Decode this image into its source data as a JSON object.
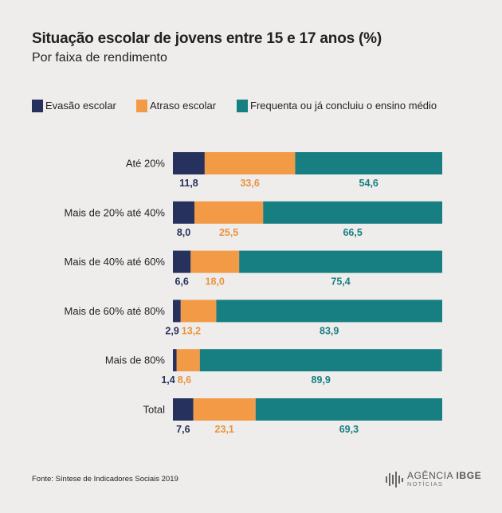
{
  "chart_data": {
    "type": "bar",
    "stacked": true,
    "orientation": "horizontal",
    "title": "Situação escolar de jovens entre 15 e 17 anos  (%)",
    "subtitle": "Por faixa de rendimento",
    "categories": [
      "Até 20%",
      "Mais de 20% até 40%",
      "Mais de 40% até 60%",
      "Mais de 60% até 80%",
      "Mais de 80%",
      "Total"
    ],
    "series": [
      {
        "name": "Evasão escolar",
        "color": "#26315e",
        "label_color": "#26315e",
        "values": [
          11.8,
          8.0,
          6.6,
          2.9,
          1.4,
          7.6
        ],
        "labels": [
          "11,8",
          "8,0",
          "6,6",
          "2,9",
          "1,4",
          "7,6"
        ]
      },
      {
        "name": "Atraso escolar",
        "color": "#f39a47",
        "label_color": "#e8933f",
        "values": [
          33.6,
          25.5,
          18.0,
          13.2,
          8.6,
          23.1
        ],
        "labels": [
          "33,6",
          "25,5",
          "18,0",
          "13,2",
          "8,6",
          "23,1"
        ]
      },
      {
        "name": "Frequenta ou já concluiu o ensino médio",
        "color": "#177f82",
        "label_color": "#177f82",
        "values": [
          54.6,
          66.5,
          75.4,
          83.9,
          89.9,
          69.3
        ],
        "labels": [
          "54,6",
          "66,5",
          "75,4",
          "83,9",
          "89,9",
          "69,3"
        ]
      }
    ],
    "xlim": [
      0,
      100
    ],
    "legend_position": "top-left",
    "source": "Fonte:  Síntese de Indicadores Sociais 2019"
  },
  "logo": {
    "main_a": "AGÊNCIA",
    "main_b": "IBGE",
    "sub": "NOTÍCIAS"
  }
}
